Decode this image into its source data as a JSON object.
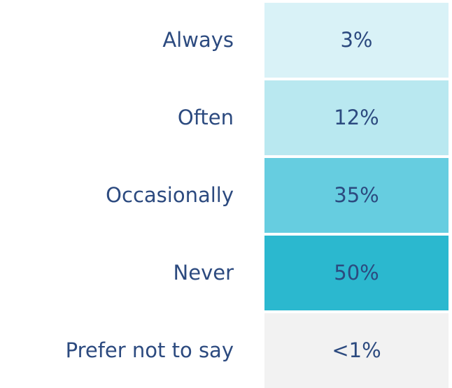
{
  "table": {
    "rows": [
      {
        "label": "Always",
        "value": "3%",
        "color": "#d9f2f7"
      },
      {
        "label": "Often",
        "value": "12%",
        "color": "#b9e8f0"
      },
      {
        "label": "Occasionally",
        "value": "35%",
        "color": "#66cde0"
      },
      {
        "label": "Never",
        "value": "50%",
        "color": "#2bb8cf"
      },
      {
        "label": "Prefer not to say",
        "value": "<1%",
        "color": "#f2f2f2"
      }
    ]
  }
}
